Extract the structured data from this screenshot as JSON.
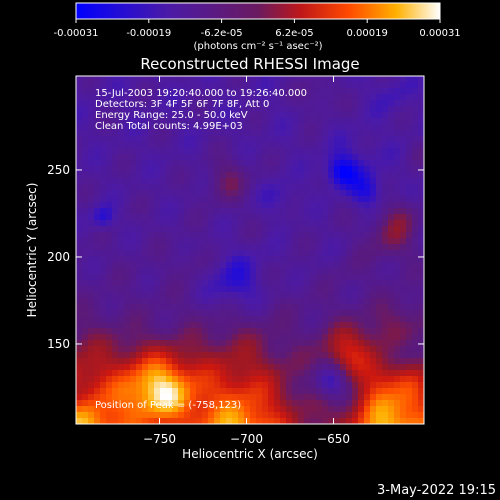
{
  "chart_data": {
    "type": "heatmap",
    "title": "Reconstructed RHESSI Image",
    "xlabel": "Heliocentric X (arcsec)",
    "ylabel": "Heliocentric Y (arcsec)",
    "xlim": [
      -798,
      -598
    ],
    "ylim": [
      104,
      304
    ],
    "x_ticks": [
      -750,
      -700,
      -650
    ],
    "y_ticks": [
      150,
      200,
      250
    ],
    "colorbar": {
      "min": -0.00031,
      "max": 0.00031,
      "ticks": [
        "-0.00031",
        "-0.00019",
        "-6.2e-05",
        "6.2e-05",
        "0.00019",
        "0.00031"
      ],
      "unit_label": "(photons cm⁻² s⁻¹ asec⁻²)",
      "colors": [
        "#0000ff",
        "#5a1aa0",
        "#7a2a7a",
        "#c02020",
        "#ff5000",
        "#ffb000",
        "#ffffff"
      ]
    },
    "annotations": [
      "15-Jul-2003 19:20:40.000 to 19:26:40.000",
      "Detectors: 3F 4F 5F 6F 7F 8F, Att 0",
      "Energy Range: 25.0 - 50.0 keV",
      "Clean     Total counts: 4.99E+03"
    ],
    "peak_label": "Position of Peak = (-758,123)",
    "peak": {
      "x": -758,
      "y": 123
    }
  },
  "footer_date": "3-May-2022 19:15"
}
